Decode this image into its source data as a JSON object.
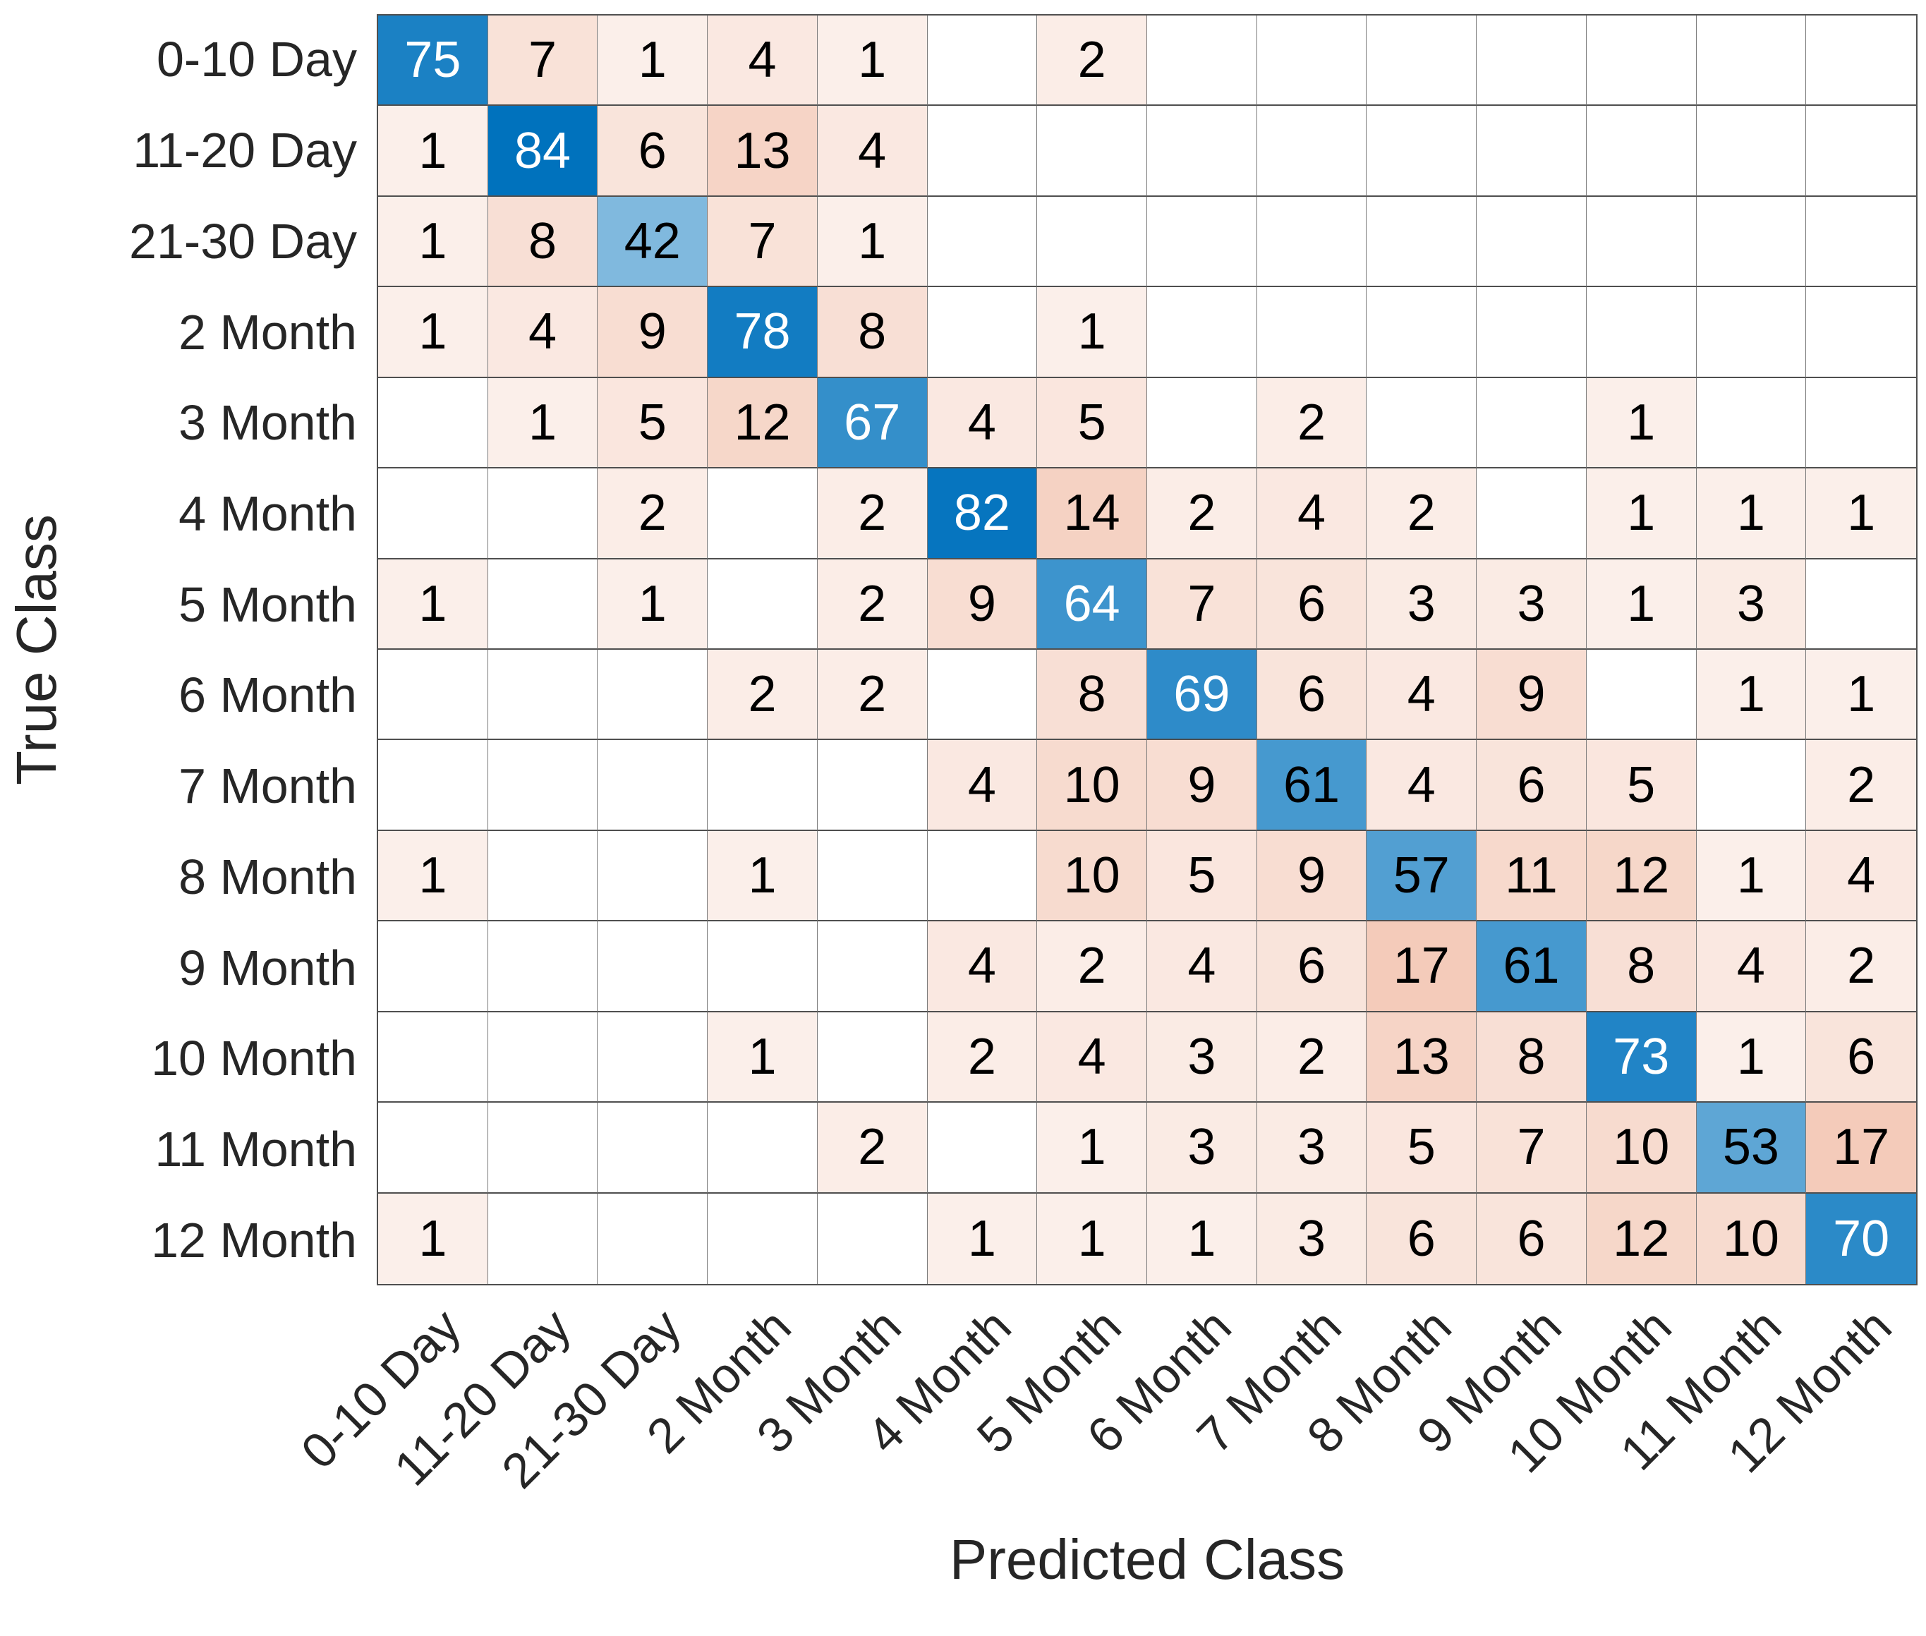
{
  "chart_data": {
    "type": "heatmap",
    "subtype": "confusion-matrix",
    "title": "",
    "xlabel": "Predicted Class",
    "ylabel": "True Class",
    "classes": [
      "0-10 Day",
      "11-20 Day",
      "21-30 Day",
      "2 Month",
      "3 Month",
      "4 Month",
      "5 Month",
      "6 Month",
      "7 Month",
      "8 Month",
      "9 Month",
      "10 Month",
      "11 Month",
      "12 Month"
    ],
    "matrix": [
      [
        75,
        7,
        1,
        4,
        1,
        0,
        2,
        0,
        0,
        0,
        0,
        0,
        0,
        0
      ],
      [
        1,
        84,
        6,
        13,
        4,
        0,
        0,
        0,
        0,
        0,
        0,
        0,
        0,
        0
      ],
      [
        1,
        8,
        42,
        7,
        1,
        0,
        0,
        0,
        0,
        0,
        0,
        0,
        0,
        0
      ],
      [
        1,
        4,
        9,
        78,
        8,
        0,
        1,
        0,
        0,
        0,
        0,
        0,
        0,
        0
      ],
      [
        0,
        1,
        5,
        12,
        67,
        4,
        5,
        0,
        2,
        0,
        0,
        1,
        0,
        0
      ],
      [
        0,
        0,
        2,
        0,
        2,
        82,
        14,
        2,
        4,
        2,
        0,
        1,
        1,
        1
      ],
      [
        1,
        0,
        1,
        0,
        2,
        9,
        64,
        7,
        6,
        3,
        3,
        1,
        3,
        0
      ],
      [
        0,
        0,
        0,
        2,
        2,
        0,
        8,
        69,
        6,
        4,
        9,
        0,
        1,
        1
      ],
      [
        0,
        0,
        0,
        0,
        0,
        4,
        10,
        9,
        61,
        4,
        6,
        5,
        0,
        2
      ],
      [
        1,
        0,
        0,
        1,
        0,
        0,
        10,
        5,
        9,
        57,
        11,
        12,
        1,
        4
      ],
      [
        0,
        0,
        0,
        0,
        0,
        4,
        2,
        4,
        6,
        17,
        61,
        8,
        4,
        2
      ],
      [
        0,
        0,
        0,
        1,
        0,
        2,
        4,
        3,
        2,
        13,
        8,
        73,
        1,
        6
      ],
      [
        0,
        0,
        0,
        0,
        2,
        0,
        1,
        3,
        3,
        5,
        7,
        10,
        53,
        17
      ],
      [
        1,
        0,
        0,
        0,
        0,
        1,
        1,
        1,
        3,
        6,
        6,
        12,
        10,
        70
      ]
    ],
    "max_diagonal": 84,
    "max_off_diagonal": 17,
    "colors": {
      "diagonal": "#0072BD",
      "off_diagonal": "#D95319",
      "empty": "#FFFFFF",
      "cell_text": "#000000",
      "cell_text_light": "#FFFFFF",
      "white_text_min": 64,
      "grid_line_h": "#4F4F4F",
      "grid_line_v": "#7A7A7A",
      "axis_text": "#262626"
    },
    "layout_hints": {
      "x_tick_rotation_deg": 45,
      "grid": "on",
      "legend": "none"
    }
  }
}
